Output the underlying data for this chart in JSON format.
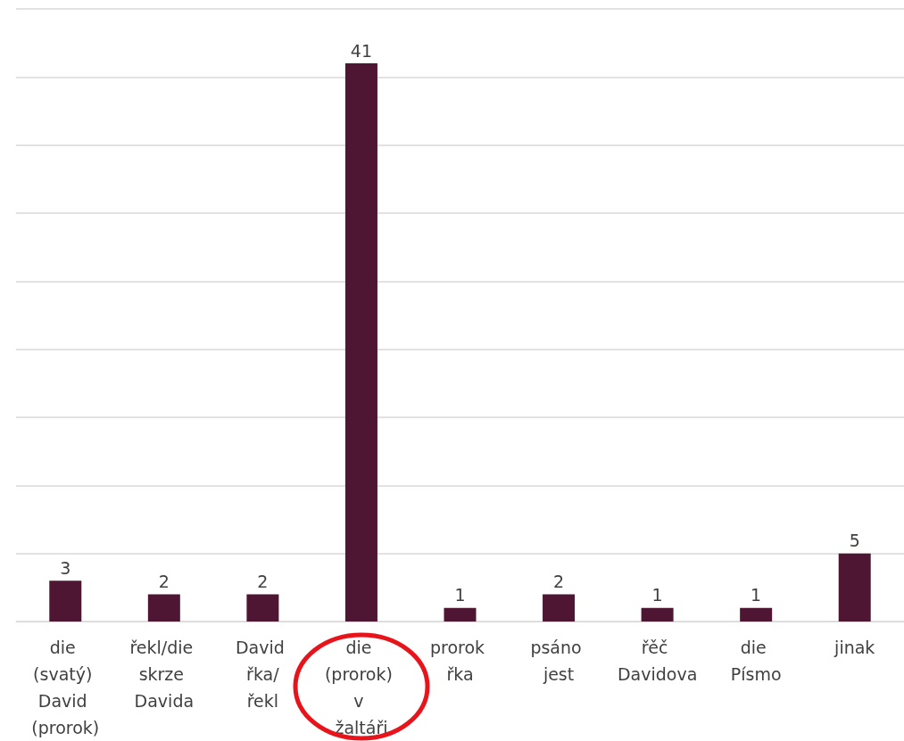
{
  "chart_data": {
    "type": "bar",
    "categories": [
      "die (svatý) David (prorok)",
      "řekl/die skrze Davida",
      "David řka/řekl",
      "die (prorok) v žaltáři",
      "prorok řka",
      "psáno jest",
      "řěč Davidova",
      "die Písmo",
      "jinak"
    ],
    "values": [
      3,
      2,
      2,
      41,
      1,
      2,
      1,
      1,
      5
    ],
    "color": "#4f1634",
    "ylim": [
      0,
      45
    ],
    "yticks": [
      {
        "value": 0,
        "label": null
      },
      {
        "value": 5,
        "label": null
      },
      {
        "value": 10,
        "label": null
      },
      {
        "value": 15,
        "label": null
      },
      {
        "value": 20,
        "label": null
      },
      {
        "value": 25,
        "label": null
      },
      {
        "value": 30,
        "label": null
      },
      {
        "value": 35,
        "label": null
      },
      {
        "value": 40,
        "label": null
      },
      {
        "value": 45,
        "label": null
      }
    ],
    "grid": "y",
    "data_labels": true,
    "tick_labels": "x"
  }
}
